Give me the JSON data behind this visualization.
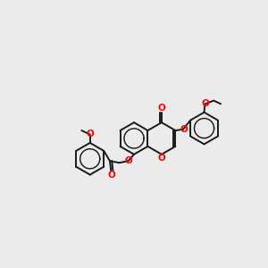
{
  "bg_color": "#ebebeb",
  "bond_color": "#1a1a1a",
  "oxygen_color": "#ff0000",
  "bond_width": 1.4,
  "figsize": [
    3.0,
    3.0
  ],
  "dpi": 100,
  "xlim": [
    0,
    12
  ],
  "ylim": [
    0,
    12
  ]
}
